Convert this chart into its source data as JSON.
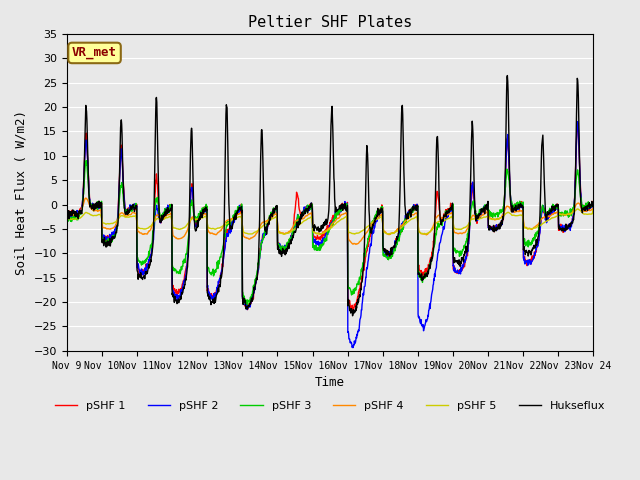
{
  "title": "Peltier SHF Plates",
  "xlabel": "Time",
  "ylabel": "Soil Heat Flux ( W/m2)",
  "ylim": [
    -30,
    35
  ],
  "yticks": [
    -30,
    -25,
    -20,
    -15,
    -10,
    -5,
    0,
    5,
    10,
    15,
    20,
    25,
    30,
    35
  ],
  "background_color": "#e8e8e8",
  "annotation_text": "VR_met",
  "annotation_color": "#8b0000",
  "annotation_bg": "#ffff99",
  "legend_entries": [
    "pSHF 1",
    "pSHF 2",
    "pSHF 3",
    "pSHF 4",
    "pSHF 5",
    "Hukseflux"
  ],
  "line_colors": [
    "#ff0000",
    "#0000ff",
    "#00cc00",
    "#ff8800",
    "#cccc00",
    "#000000"
  ],
  "xtick_labels": [
    "Nov 9",
    "Nov 10",
    "Nov 11",
    "Nov 12",
    "Nov 13",
    "Nov 14",
    "Nov 15",
    "Nov 16",
    "Nov 17",
    "Nov 18",
    "Nov 19",
    "Nov 20",
    "Nov 21",
    "Nov 22",
    "Nov 23",
    "Nov 24"
  ],
  "font_family": "monospace"
}
